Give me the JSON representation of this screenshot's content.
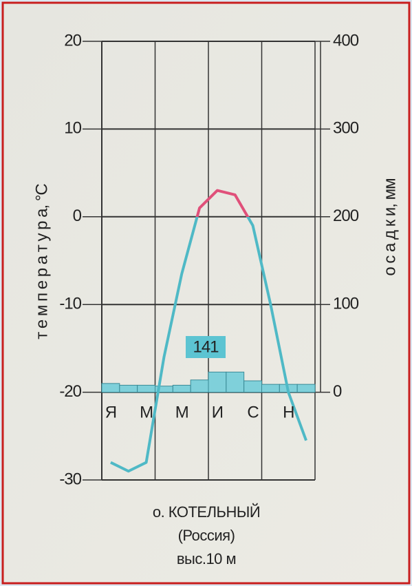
{
  "chart_data": {
    "type": "climatogram",
    "categories": [
      "Я",
      null,
      "М",
      null,
      "М",
      null,
      "И",
      null,
      "С",
      null,
      "Н",
      null
    ],
    "ylim": [
      -30,
      20
    ],
    "yticks": [
      -30,
      -20,
      -10,
      0,
      10,
      20
    ],
    "y2lim": [
      -100,
      400
    ],
    "y2ticks": [
      0,
      100,
      200,
      300,
      400
    ],
    "y_label": "т е м п е р а т у р а,  °С",
    "y2_label": "о с а д к и,  мм",
    "grid": true,
    "series": [
      {
        "type": "line",
        "color": "#4fb9c6",
        "color_above_zero": "#e0507a",
        "values": [
          -28,
          -29,
          -28,
          -16,
          -6.5,
          1,
          3,
          2.5,
          -1,
          -10,
          -20,
          -25.5
        ]
      },
      {
        "type": "bar",
        "axis": "y2",
        "color": "#7fd0da",
        "values": [
          10,
          8,
          8,
          7,
          8,
          14,
          23,
          23,
          13,
          9,
          9,
          9
        ]
      }
    ],
    "annotation": 141,
    "caption": [
      "о. КОТЕЛЬНЫЙ",
      "(Россия)",
      "выс.10 м"
    ]
  }
}
